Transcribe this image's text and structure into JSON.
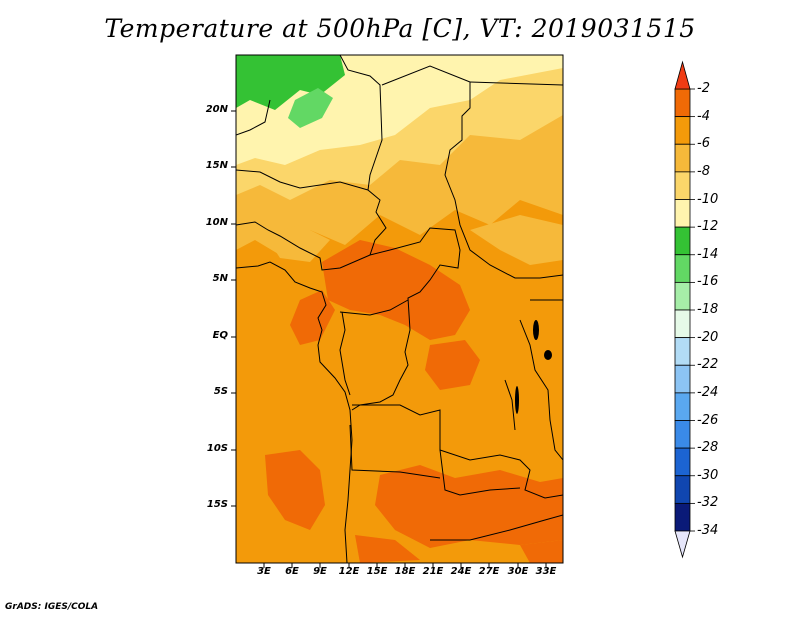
{
  "title": "Temperature at 500hPa [C], VT: 2019031515",
  "footer": "GrADS: IGES/COLA",
  "lat_labels": [
    "20N",
    "15N",
    "10N",
    "5N",
    "EQ",
    "5S",
    "10S",
    "15S"
  ],
  "lon_labels": [
    "3E",
    "6E",
    "9E",
    "12E",
    "15E",
    "18E",
    "21E",
    "24E",
    "27E",
    "30E",
    "33E"
  ],
  "colorbar": {
    "labels": [
      "-2",
      "-4",
      "-6",
      "-8",
      "-10",
      "-12",
      "-14",
      "-16",
      "-18",
      "-20",
      "-22",
      "-24",
      "-26",
      "-28",
      "-30",
      "-32",
      "-34"
    ],
    "colors": [
      "#f03c14",
      "#f06a06",
      "#f39a0a",
      "#f6b93a",
      "#fbd66a",
      "#fff4ae",
      "#34c234",
      "#62d864",
      "#a6eea8",
      "#e6fae8",
      "#b2dcf6",
      "#8cc4f4",
      "#5aa8f0",
      "#3a8ae8",
      "#1c64d2",
      "#1046b0",
      "#0a1a78"
    ]
  },
  "map_colors": {
    "base": "#f39a0a",
    "warm": "#f06a06",
    "light": "#f6b93a",
    "pale": "#fbd66a",
    "cream": "#fff4ae",
    "green": "#34c234",
    "lightgreen": "#62d864"
  }
}
